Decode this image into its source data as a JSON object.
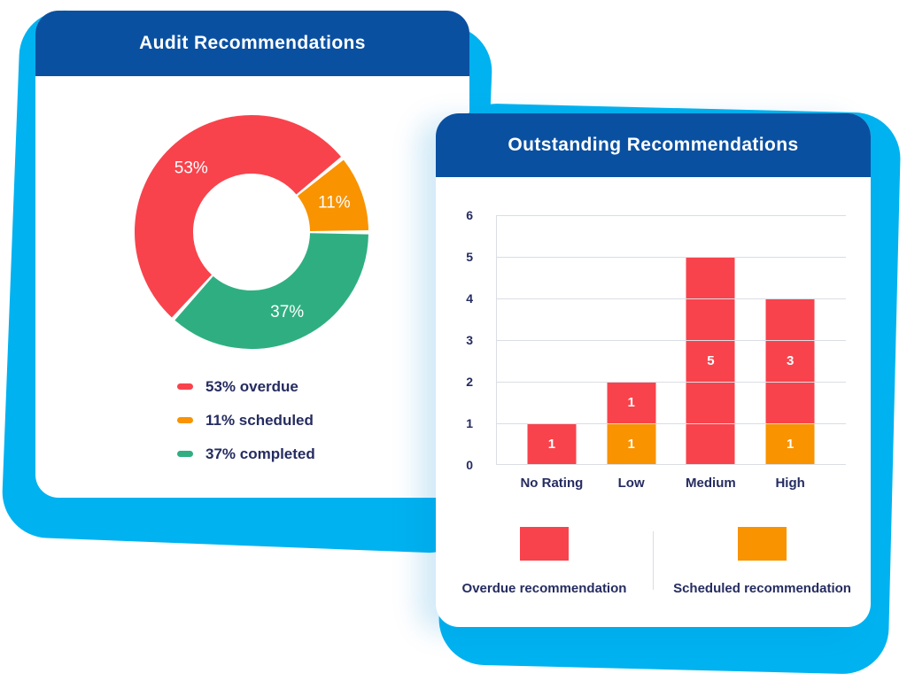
{
  "colors": {
    "cyan_shadow": "#00B2F0",
    "header_blue": "#0A50A1",
    "red": "#F8434C",
    "orange": "#F99300",
    "green": "#2FAF81",
    "navy_text": "#252C60",
    "grid": "#DADDE3",
    "white": "#FFFFFF"
  },
  "left_card": {
    "title": "Audit Recommendations",
    "legend": [
      {
        "label": "53% overdue",
        "color": "#F8434C"
      },
      {
        "label": "11% scheduled",
        "color": "#F99300"
      },
      {
        "label": "37% completed",
        "color": "#2FAF81"
      }
    ]
  },
  "right_card": {
    "title": "Outstanding Recommendations",
    "legend": [
      {
        "label": "Overdue recommendation",
        "color": "#F8434C"
      },
      {
        "label": "Scheduled recommendation",
        "color": "#F99300"
      }
    ]
  },
  "chart_data": [
    {
      "type": "pie",
      "subtype": "donut",
      "title": "Audit Recommendations",
      "slices": [
        {
          "label": "overdue",
          "value": 53,
          "display": "53%",
          "color": "#F8434C"
        },
        {
          "label": "scheduled",
          "value": 11,
          "display": "11%",
          "color": "#F99300"
        },
        {
          "label": "completed",
          "value": 37,
          "display": "37%",
          "color": "#2FAF81"
        }
      ],
      "start_angle_deg": -138,
      "gap_deg": 2,
      "inner_radius_ratio": 0.5,
      "legend_position": "bottom"
    },
    {
      "type": "bar",
      "subtype": "stacked",
      "title": "Outstanding Recommendations",
      "categories": [
        "No Rating",
        "Low",
        "Medium",
        "High"
      ],
      "series": [
        {
          "name": "Scheduled recommendation",
          "color": "#F99300",
          "values": [
            0,
            1,
            0,
            1
          ]
        },
        {
          "name": "Overdue recommendation",
          "color": "#F8434C",
          "values": [
            1,
            1,
            5,
            3
          ]
        }
      ],
      "ylim": [
        0,
        6
      ],
      "yticks": [
        0,
        1,
        2,
        3,
        4,
        5,
        6
      ],
      "grid": true,
      "legend_position": "bottom"
    }
  ]
}
